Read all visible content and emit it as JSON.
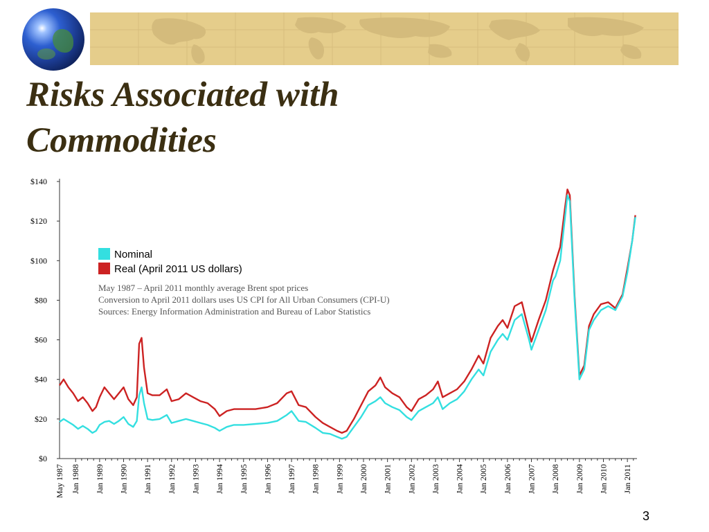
{
  "slide": {
    "title_line1": "Risks Associated with",
    "title_line2": "Commodities",
    "page_number": "3"
  },
  "colors": {
    "nominal": "#33dfe0",
    "real": "#cc2222",
    "banner": "#e5cd8b",
    "title": "#3b2f12"
  },
  "chart_data": {
    "type": "line",
    "xlabel": "",
    "ylabel": "",
    "ylim": [
      0,
      140
    ],
    "y_ticks": [
      "$0",
      "$20",
      "$40",
      "$60",
      "$80",
      "$100",
      "$120",
      "$140"
    ],
    "y_tick_values": [
      0,
      20,
      40,
      60,
      80,
      100,
      120,
      140
    ],
    "x_ticks": [
      "May 1987",
      "Jan 1988",
      "Jan 1989",
      "Jan 1990",
      "Jan 1991",
      "Jan 1992",
      "Jan 1993",
      "Jan 1994",
      "Jan 1995",
      "Jan 1996",
      "Jan 1997",
      "Jan 1998",
      "Jan 1999",
      "Jan 2000",
      "Jan 2001",
      "Jan 2002",
      "Jan 2003",
      "Jan 2004",
      "Jan 2005",
      "Jan 2006",
      "Jan 2007",
      "Jan 2008",
      "Jan 2009",
      "Jan 2010",
      "Jan 2011"
    ],
    "x_tick_values": [
      1987.33,
      1988,
      1989,
      1990,
      1991,
      1992,
      1993,
      1994,
      1995,
      1996,
      1997,
      1998,
      1999,
      2000,
      2001,
      2002,
      2003,
      2004,
      2005,
      2006,
      2007,
      2008,
      2009,
      2010,
      2011
    ],
    "xlim": [
      1987.33,
      2011.4
    ],
    "legend_position": "upper-left",
    "notes": [
      "May 1987 – April 2011 monthly average Brent spot prices",
      "Conversion to April 2011 dollars uses US CPI for All Urban Consumers (CPI-U)",
      "Sources: Energy Information Administration and Bureau of Labor Statistics"
    ],
    "series": [
      {
        "name": "Nominal",
        "x": [
          1987.33,
          1987.5,
          1987.7,
          1987.9,
          1988.1,
          1988.3,
          1988.5,
          1988.7,
          1988.85,
          1989.0,
          1989.2,
          1989.4,
          1989.6,
          1989.8,
          1990.0,
          1990.2,
          1990.4,
          1990.55,
          1990.65,
          1990.75,
          1990.85,
          1991.0,
          1991.2,
          1991.5,
          1991.8,
          1992.0,
          1992.3,
          1992.6,
          1992.9,
          1993.2,
          1993.5,
          1993.8,
          1994.0,
          1994.3,
          1994.6,
          1995.0,
          1995.5,
          1996.0,
          1996.4,
          1996.8,
          1997.0,
          1997.3,
          1997.6,
          1998.0,
          1998.3,
          1998.6,
          1998.9,
          1999.1,
          1999.3,
          1999.6,
          1999.9,
          2000.2,
          2000.5,
          2000.7,
          2000.9,
          2001.2,
          2001.5,
          2001.8,
          2002.0,
          2002.3,
          2002.6,
          2002.9,
          2003.1,
          2003.3,
          2003.6,
          2003.9,
          2004.2,
          2004.5,
          2004.8,
          2005.0,
          2005.3,
          2005.6,
          2005.8,
          2006.0,
          2006.3,
          2006.6,
          2006.9,
          2007.0,
          2007.3,
          2007.6,
          2007.9,
          2008.0,
          2008.2,
          2008.4,
          2008.5,
          2008.6,
          2008.8,
          2009.0,
          2009.2,
          2009.4,
          2009.6,
          2009.9,
          2010.2,
          2010.5,
          2010.8,
          2011.0,
          2011.2,
          2011.33
        ],
        "values": [
          18.5,
          20,
          18.5,
          17,
          15,
          16.5,
          15,
          13,
          14,
          17,
          18.5,
          19,
          17.5,
          19,
          21,
          17.5,
          16,
          19,
          32,
          36,
          28,
          20,
          19.5,
          20,
          22,
          18,
          19,
          20,
          19,
          18,
          17,
          15.5,
          14,
          16,
          17,
          17,
          17.5,
          18,
          19,
          22,
          24,
          19,
          18.5,
          15.5,
          13,
          12.5,
          11,
          10,
          11,
          16,
          21,
          27,
          29,
          31,
          28,
          26,
          24.5,
          21,
          19.5,
          24,
          26,
          28,
          31,
          25,
          28,
          30,
          34,
          40,
          45,
          42,
          54,
          60,
          63,
          60,
          70,
          73,
          60,
          55,
          65,
          75,
          90,
          92,
          100,
          122,
          133,
          130,
          80,
          40,
          45,
          65,
          70,
          75,
          77,
          75,
          82,
          94,
          110,
          122
        ]
      },
      {
        "name": "Real (April 2011 US dollars)",
        "x": [
          1987.33,
          1987.5,
          1987.7,
          1987.9,
          1988.1,
          1988.3,
          1988.5,
          1988.7,
          1988.85,
          1989.0,
          1989.2,
          1989.4,
          1989.6,
          1989.8,
          1990.0,
          1990.2,
          1990.4,
          1990.55,
          1990.65,
          1990.75,
          1990.85,
          1991.0,
          1991.2,
          1991.5,
          1991.8,
          1992.0,
          1992.3,
          1992.6,
          1992.9,
          1993.2,
          1993.5,
          1993.8,
          1994.0,
          1994.3,
          1994.6,
          1995.0,
          1995.5,
          1996.0,
          1996.4,
          1996.8,
          1997.0,
          1997.3,
          1997.6,
          1998.0,
          1998.3,
          1998.6,
          1998.9,
          1999.1,
          1999.3,
          1999.6,
          1999.9,
          2000.2,
          2000.5,
          2000.7,
          2000.9,
          2001.2,
          2001.5,
          2001.8,
          2002.0,
          2002.3,
          2002.6,
          2002.9,
          2003.1,
          2003.3,
          2003.6,
          2003.9,
          2004.2,
          2004.5,
          2004.8,
          2005.0,
          2005.3,
          2005.6,
          2005.8,
          2006.0,
          2006.3,
          2006.6,
          2006.9,
          2007.0,
          2007.3,
          2007.6,
          2007.9,
          2008.0,
          2008.2,
          2008.4,
          2008.5,
          2008.6,
          2008.8,
          2009.0,
          2009.2,
          2009.4,
          2009.6,
          2009.9,
          2010.2,
          2010.5,
          2010.8,
          2011.0,
          2011.2,
          2011.33
        ],
        "values": [
          37,
          40,
          36,
          33,
          29,
          31,
          28,
          24,
          26,
          31,
          36,
          33,
          30,
          33,
          36,
          30,
          27,
          31,
          58,
          61,
          46,
          33,
          32,
          32,
          35,
          29,
          30,
          33,
          31,
          29,
          28,
          25,
          21.5,
          24,
          25,
          25,
          25,
          26,
          28,
          33,
          34,
          27,
          26,
          21,
          18,
          16,
          14,
          13,
          14,
          20,
          27,
          34,
          37,
          41,
          36,
          33,
          31,
          26,
          24,
          30,
          32,
          35,
          39,
          31,
          33,
          35,
          39,
          45,
          52,
          48,
          61,
          67,
          70,
          66,
          77,
          79,
          64,
          59,
          70,
          80,
          95,
          99,
          107,
          127,
          136,
          133,
          82,
          42,
          47,
          67,
          73,
          78,
          79,
          76,
          83,
          96,
          110,
          123
        ]
      }
    ]
  }
}
